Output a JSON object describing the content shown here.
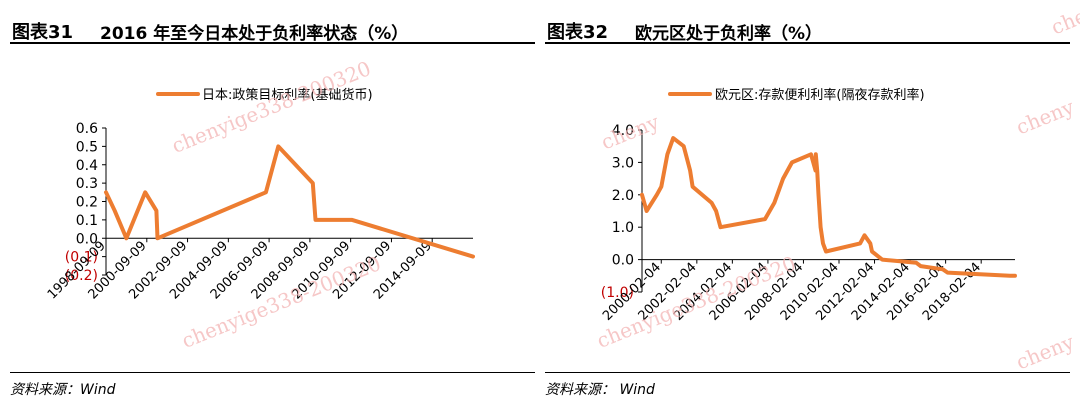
{
  "panels": [
    {
      "number": "图表31",
      "title": "2016 年至今日本处于负利率状态（%）",
      "source": "资料来源：Wind"
    },
    {
      "number": "图表32",
      "title": "欧元区处于负利率（%）",
      "source": "资料来源：  Wind"
    }
  ],
  "watermarks": [
    "chenyige338-200320",
    "chenyige338-200320",
    "chenyige338-200320",
    "cheny",
    "cheny",
    "cheny",
    "cheny"
  ],
  "colors": {
    "series": "#ED7D31",
    "axis": "#000000",
    "negative_label": "#C00000"
  },
  "chart_data": [
    {
      "type": "line",
      "title": "",
      "xlabel": "",
      "ylabel": "",
      "ylim": [
        -0.2,
        0.6
      ],
      "x_range": [
        "1998-09-09",
        "2016-09-09"
      ],
      "y_ticks": [
        {
          "v": 0.6,
          "label": "0.6"
        },
        {
          "v": 0.5,
          "label": "0.5"
        },
        {
          "v": 0.4,
          "label": "0.4"
        },
        {
          "v": 0.3,
          "label": "0.3"
        },
        {
          "v": 0.2,
          "label": "0.2"
        },
        {
          "v": 0.1,
          "label": "0.1"
        },
        {
          "v": 0.0,
          "label": "0.0"
        },
        {
          "v": -0.1,
          "label": "(0.1)"
        },
        {
          "v": -0.2,
          "label": "(0.2)"
        }
      ],
      "x_ticks": [
        "1998-09-09",
        "2000-09-09",
        "2002-09-09",
        "2004-09-09",
        "2006-09-09",
        "2008-09-09",
        "2010-09-09",
        "2012-09-09",
        "2014-09-09"
      ],
      "grid": false,
      "legend": "top",
      "series": [
        {
          "name": "日本:政策目标利率(基础货币)",
          "points": [
            [
              "1998-09-09",
              0.25
            ],
            [
              "1999-02-12",
              0.15
            ],
            [
              "1999-09-09",
              0.0
            ],
            [
              "2000-08-11",
              0.25
            ],
            [
              "2001-02-28",
              0.15
            ],
            [
              "2001-03-19",
              0.0
            ],
            [
              "2006-07-14",
              0.25
            ],
            [
              "2007-02-21",
              0.5
            ],
            [
              "2008-10-31",
              0.3
            ],
            [
              "2008-12-19",
              0.1
            ],
            [
              "2010-10-05",
              0.1
            ],
            [
              "2016-09-09",
              -0.1
            ]
          ]
        }
      ]
    },
    {
      "type": "line",
      "title": "",
      "xlabel": "",
      "ylabel": "",
      "ylim": [
        -1.0,
        4.0
      ],
      "x_range": [
        "1999-01-04",
        "2019-12-31"
      ],
      "y_ticks": [
        {
          "v": 4.0,
          "label": "4.0"
        },
        {
          "v": 3.0,
          "label": "3.0"
        },
        {
          "v": 2.0,
          "label": "2.0"
        },
        {
          "v": 1.0,
          "label": "1.0"
        },
        {
          "v": 0.0,
          "label": "0.0"
        },
        {
          "v": -1.0,
          "label": "(1.0)"
        }
      ],
      "x_ticks": [
        "2000-02-04",
        "2002-02-04",
        "2004-02-04",
        "2006-02-04",
        "2008-02-04",
        "2010-02-04",
        "2012-02-04",
        "2014-02-04",
        "2016-02-04",
        "2018-02-04"
      ],
      "grid": false,
      "legend": "top",
      "series": [
        {
          "name": "欧元区:存款便利利率(隔夜存款利率)",
          "points": [
            [
              "1999-01-04",
              2.0
            ],
            [
              "1999-04-09",
              1.5
            ],
            [
              "1999-11-05",
              2.0
            ],
            [
              "2000-02-04",
              2.25
            ],
            [
              "2000-06-09",
              3.25
            ],
            [
              "2000-10-06",
              3.75
            ],
            [
              "2001-05-11",
              3.5
            ],
            [
              "2001-09-18",
              2.75
            ],
            [
              "2001-11-09",
              2.25
            ],
            [
              "2002-12-06",
              1.75
            ],
            [
              "2003-03-07",
              1.5
            ],
            [
              "2003-06-06",
              1.0
            ],
            [
              "2005-12-06",
              1.25
            ],
            [
              "2006-06-15",
              1.75
            ],
            [
              "2006-12-13",
              2.5
            ],
            [
              "2007-06-13",
              3.0
            ],
            [
              "2008-07-09",
              3.25
            ],
            [
              "2008-10-09",
              2.75
            ],
            [
              "2008-10-15",
              3.25
            ],
            [
              "2008-11-12",
              2.75
            ],
            [
              "2008-12-10",
              2.0
            ],
            [
              "2009-01-21",
              1.0
            ],
            [
              "2009-03-11",
              0.5
            ],
            [
              "2009-05-13",
              0.25
            ],
            [
              "2011-04-13",
              0.5
            ],
            [
              "2011-07-13",
              0.75
            ],
            [
              "2011-11-09",
              0.5
            ],
            [
              "2011-12-14",
              0.25
            ],
            [
              "2012-07-11",
              0.0
            ],
            [
              "2014-06-11",
              -0.1
            ],
            [
              "2014-09-10",
              -0.2
            ],
            [
              "2015-12-09",
              -0.3
            ],
            [
              "2016-03-16",
              -0.4
            ],
            [
              "2019-09-18",
              -0.5
            ],
            [
              "2019-12-31",
              -0.5
            ]
          ]
        }
      ]
    }
  ]
}
